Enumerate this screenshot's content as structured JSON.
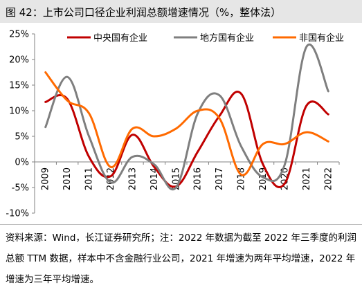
{
  "header": {
    "title": "图 42：上市公司口径企业利润总额增速情况（%，整体法）"
  },
  "chart_data": {
    "type": "line",
    "x": [
      "2009",
      "2010",
      "2011",
      "2012",
      "2013",
      "2014",
      "2015",
      "2016",
      "2017",
      "2018",
      "2019",
      "2020",
      "2021",
      "2022"
    ],
    "ylim": [
      -10,
      25
    ],
    "yticks": [
      "-10%",
      "-5%",
      "0%",
      "5%",
      "10%",
      "15%",
      "20%",
      "25%"
    ],
    "ytick_values": [
      -10,
      -5,
      0,
      5,
      10,
      15,
      20,
      25
    ],
    "legend_position": "top",
    "grid": false,
    "smooth": true,
    "series": [
      {
        "name": "中央国有企业",
        "color": "#c00000",
        "values": [
          11.7,
          12.3,
          1.0,
          -2.8,
          5.3,
          -1.0,
          -4.8,
          2.0,
          9.0,
          13.3,
          -0.5,
          -4.2,
          11.0,
          9.3
        ]
      },
      {
        "name": "地方国有企业",
        "color": "#7f7f7f",
        "values": [
          6.8,
          16.6,
          5.0,
          -4.0,
          1.0,
          -0.5,
          -5.0,
          9.5,
          13.0,
          3.0,
          -3.0,
          -0.5,
          22.5,
          13.8
        ]
      },
      {
        "name": "非国有企业",
        "color": "#ff6a00",
        "values": [
          17.5,
          12.0,
          9.5,
          -1.0,
          6.5,
          5.0,
          6.5,
          10.0,
          8.5,
          -2.5,
          3.5,
          3.5,
          5.8,
          4.0
        ]
      }
    ]
  },
  "footnote": {
    "text": "资料来源：Wind，长江证券研究所；注：2022 年数据为截至 2022 年三季度的利润总额 TTM 数据，样本中不含金融行业公司，2021 年增速为两年平均增速，2022 年增速为三年平均增速。"
  }
}
